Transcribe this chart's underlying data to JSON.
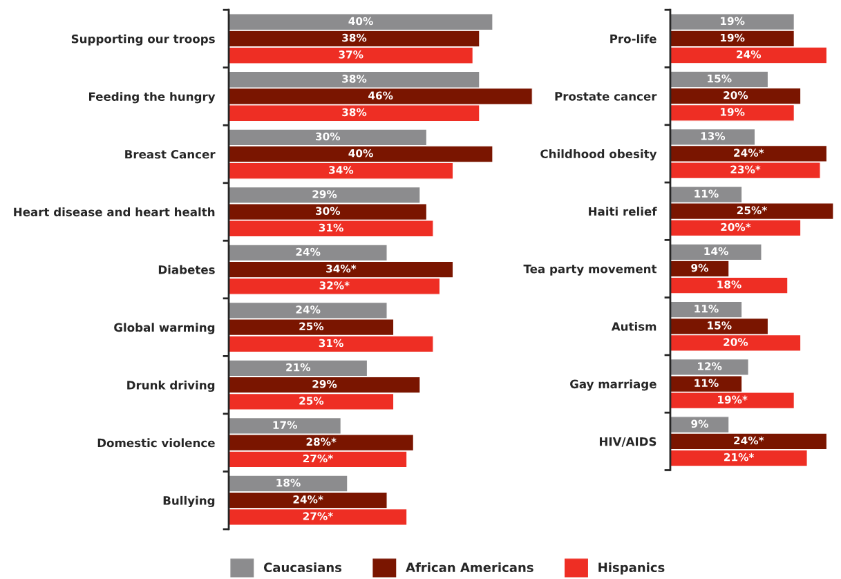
{
  "chart_data": [
    {
      "type": "bar",
      "orientation": "horizontal",
      "legend": "bottom",
      "categories": [
        "Supporting our troops",
        "Feeding the hungry",
        "Breast Cancer",
        "Heart disease and heart health",
        "Diabetes",
        "Global warming",
        "Drunk driving",
        "Domestic violence",
        "Bullying"
      ],
      "series": [
        {
          "name": "Caucasians",
          "color": "#8c8c8e",
          "values": [
            40,
            38,
            30,
            29,
            24,
            24,
            21,
            17,
            18
          ],
          "value_labels": [
            "40%",
            "38%",
            "30%",
            "29%",
            "24%",
            "24%",
            "21%",
            "17%",
            "18%"
          ]
        },
        {
          "name": "African Americans",
          "color": "#7a1500",
          "values": [
            38,
            46,
            40,
            30,
            34,
            25,
            29,
            28,
            24
          ],
          "value_labels": [
            "38%",
            "46%",
            "40%",
            "30%",
            "34%*",
            "25%",
            "29%",
            "28%*",
            "24%*"
          ]
        },
        {
          "name": "Hispanics",
          "color": "#ee2e24",
          "values": [
            37,
            38,
            34,
            31,
            32,
            31,
            25,
            27,
            27
          ],
          "value_labels": [
            "37%",
            "38%",
            "34%",
            "31%",
            "32%*",
            "31%",
            "25%",
            "27%*",
            "27%*"
          ]
        }
      ]
    },
    {
      "type": "bar",
      "orientation": "horizontal",
      "categories": [
        "Pro-life",
        "Prostate cancer",
        "Childhood obesity",
        "Haiti relief",
        "Tea party movement",
        "Autism",
        "Gay marriage",
        "HIV/AIDS"
      ],
      "series": [
        {
          "color": "#8c8c8e",
          "values": [
            19,
            15,
            13,
            11,
            14,
            11,
            12,
            9
          ],
          "value_labels": [
            "19%",
            "15%",
            "13%",
            "11%",
            "14%",
            "11%",
            "12%",
            "9%"
          ]
        },
        {
          "color": "#7a1500",
          "values": [
            19,
            20,
            24,
            25,
            9,
            15,
            11,
            24
          ],
          "value_labels": [
            "19%",
            "20%",
            "24%*",
            "25%*",
            "9%",
            "15%",
            "11%",
            "24%*"
          ]
        },
        {
          "color": "#ee2e24",
          "values": [
            24,
            19,
            23,
            20,
            18,
            20,
            19,
            21
          ],
          "value_labels": [
            "24%",
            "19%",
            "23%*",
            "20%*",
            "18%",
            "20%",
            "19%*",
            "21%*"
          ]
        }
      ]
    }
  ]
}
